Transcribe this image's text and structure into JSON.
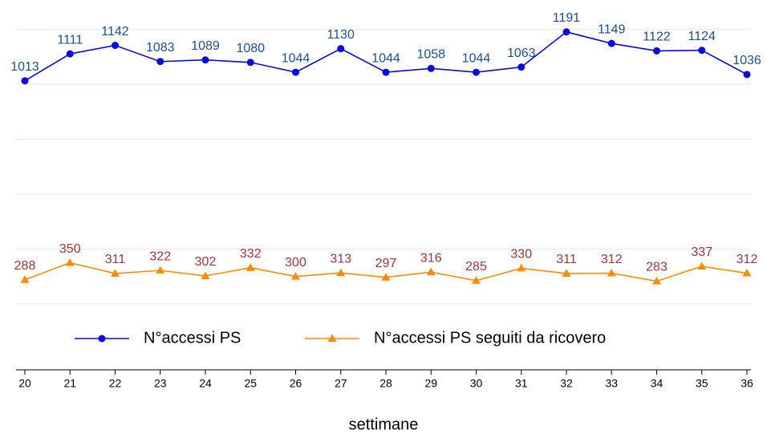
{
  "chart_data": {
    "type": "line",
    "x_label": "settimane",
    "categories": [
      "20",
      "21",
      "22",
      "23",
      "24",
      "25",
      "26",
      "27",
      "28",
      "29",
      "30",
      "31",
      "32",
      "33",
      "34",
      "35",
      "36"
    ],
    "series": [
      {
        "name": "N°accessi PS",
        "color": "#0a0adc",
        "label_color": "#1f4e8a",
        "marker": "circle",
        "values": [
          1013,
          1111,
          1142,
          1083,
          1089,
          1080,
          1044,
          1130,
          1044,
          1058,
          1044,
          1063,
          1191,
          1149,
          1122,
          1124,
          1036
        ]
      },
      {
        "name": "N°accessi PS seguiti da ricovero",
        "color": "#ff8c00",
        "label_color": "#96383a",
        "marker": "triangle",
        "values": [
          288,
          350,
          311,
          322,
          302,
          332,
          300,
          313,
          297,
          316,
          285,
          330,
          311,
          312,
          283,
          337,
          312
        ]
      }
    ],
    "ylim": [
      -40,
      1250
    ],
    "yticks": [
      200,
      400,
      600,
      800,
      1000,
      1200
    ],
    "grid": true
  }
}
